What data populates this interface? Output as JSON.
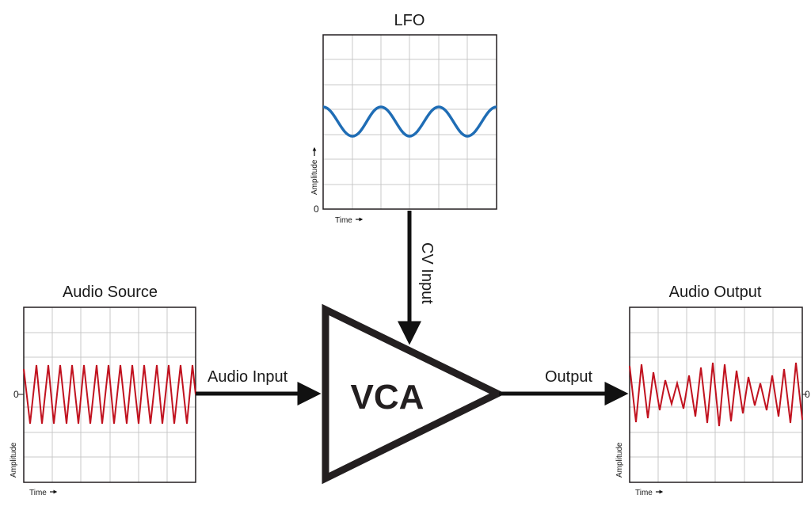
{
  "lfo_panel": {
    "title": "LFO",
    "y_axis_label": "Amplitude",
    "x_axis_label": "Time",
    "zero_label": "0",
    "wave_type": "sine",
    "wave_color": "#1f6db5"
  },
  "audio_source_panel": {
    "title": "Audio Source",
    "y_axis_label": "Amplitude",
    "x_axis_label": "Time",
    "zero_label": "0",
    "wave_type": "triangle",
    "wave_color": "#c1121f"
  },
  "audio_output_panel": {
    "title": "Audio Output",
    "y_axis_label": "Amplitude",
    "x_axis_label": "Time",
    "zero_label": "0",
    "wave_type": "triangle-modulated",
    "wave_color": "#c1121f"
  },
  "vca": {
    "label": "VCA"
  },
  "connections": {
    "cv_input_label": "CV Input",
    "audio_input_label": "Audio Input",
    "output_label": "Output"
  },
  "colors": {
    "grid": "#c8c8c8",
    "stroke": "#231f20"
  }
}
